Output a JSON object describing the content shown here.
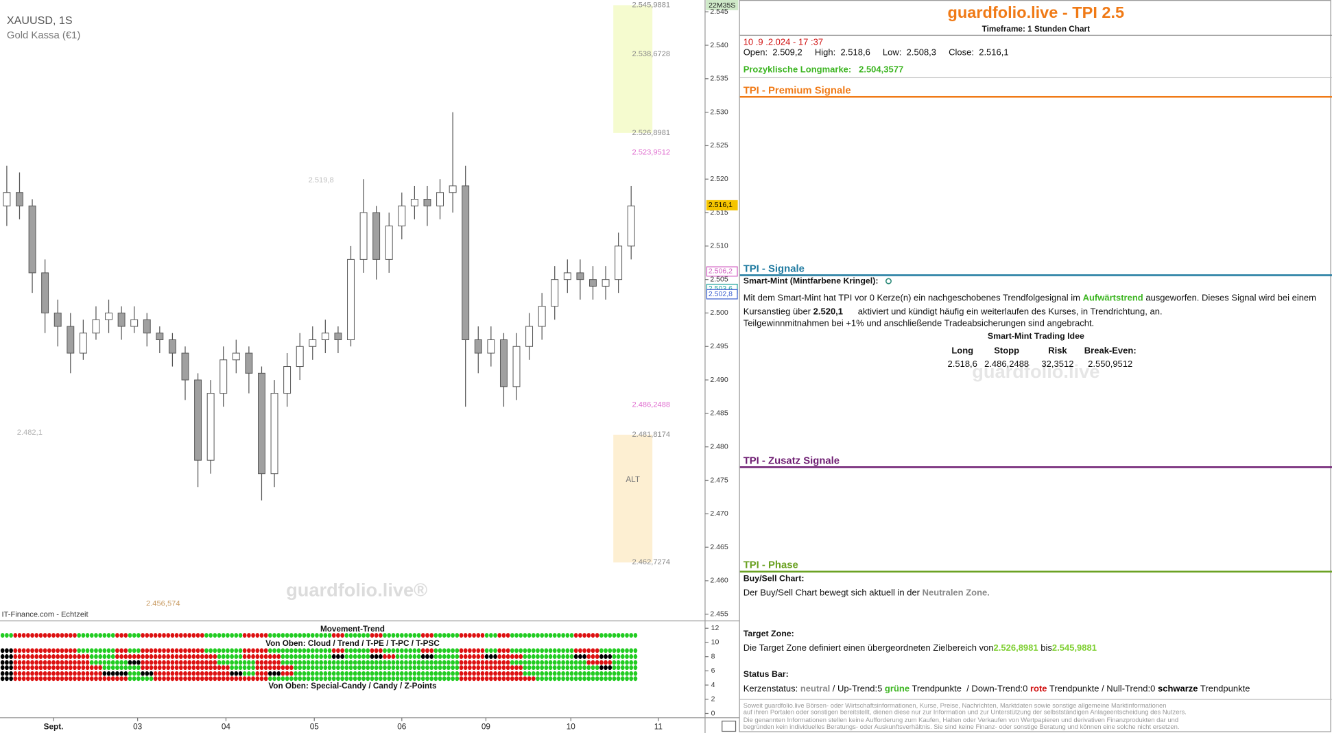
{
  "chart_header": {
    "symbol": "XAUUSD, 1S",
    "name": "Gold Kassa (€1)",
    "source": "IT-Finance.com - Echtzeit",
    "watermark": "guardfolio.live®",
    "timer": "22M35S"
  },
  "price_chart": {
    "type": "candlestick",
    "ylim": [
      2.454,
      2.546
    ],
    "yticks": [
      {
        "value": 2.455,
        "label": "2.455"
      },
      {
        "value": 2.46,
        "label": "2.460"
      },
      {
        "value": 2.465,
        "label": "2.465"
      },
      {
        "value": 2.47,
        "label": "2.470"
      },
      {
        "value": 2.475,
        "label": "2.475"
      },
      {
        "value": 2.48,
        "label": "2.480"
      },
      {
        "value": 2.485,
        "label": "2.485"
      },
      {
        "value": 2.49,
        "label": "2.490"
      },
      {
        "value": 2.495,
        "label": "2.495"
      },
      {
        "value": 2.5,
        "label": "2.500"
      },
      {
        "value": 2.505,
        "label": "2.505"
      },
      {
        "value": 2.51,
        "label": "2.510"
      },
      {
        "value": 2.515,
        "label": "2.515"
      },
      {
        "value": 2.52,
        "label": "2.520"
      },
      {
        "value": 2.525,
        "label": "2.525"
      },
      {
        "value": 2.53,
        "label": "2.530"
      },
      {
        "value": 2.535,
        "label": "2.535"
      },
      {
        "value": 2.54,
        "label": "2.540"
      },
      {
        "value": 2.545,
        "label": "2.545"
      }
    ],
    "open": [
      2.516,
      2.518,
      2.516,
      2.506,
      2.5,
      2.498,
      2.494,
      2.497,
      2.499,
      2.5,
      2.498,
      2.499,
      2.497,
      2.496,
      2.494,
      2.49,
      2.478,
      2.488,
      2.493,
      2.494,
      2.491,
      2.476,
      2.488,
      2.492,
      2.495,
      2.496,
      2.497,
      2.496,
      2.508,
      2.515,
      2.508,
      2.513,
      2.516,
      2.517,
      2.516,
      2.518,
      2.519,
      2.496,
      2.494,
      2.496,
      2.489,
      2.495,
      2.498,
      2.501,
      2.505,
      2.506,
      2.505,
      2.504,
      2.505,
      2.51
    ],
    "high": [
      2.522,
      2.521,
      2.517,
      2.508,
      2.502,
      2.5,
      2.499,
      2.501,
      2.502,
      2.501,
      2.501,
      2.5,
      2.498,
      2.497,
      2.495,
      2.491,
      2.49,
      2.495,
      2.496,
      2.495,
      2.492,
      2.49,
      2.494,
      2.497,
      2.498,
      2.499,
      2.498,
      2.51,
      2.52,
      2.516,
      2.515,
      2.518,
      2.519,
      2.519,
      2.52,
      2.53,
      2.522,
      2.498,
      2.498,
      2.497,
      2.497,
      2.5,
      2.503,
      2.507,
      2.508,
      2.508,
      2.507,
      2.507,
      2.512,
      2.519
    ],
    "low": [
      2.513,
      2.514,
      2.503,
      2.497,
      2.495,
      2.491,
      2.493,
      2.496,
      2.497,
      2.496,
      2.497,
      2.495,
      2.494,
      2.492,
      2.487,
      2.474,
      2.476,
      2.486,
      2.491,
      2.488,
      2.472,
      2.474,
      2.486,
      2.49,
      2.493,
      2.494,
      2.494,
      2.495,
      2.506,
      2.505,
      2.506,
      2.511,
      2.514,
      2.513,
      2.514,
      2.515,
      2.486,
      2.491,
      2.492,
      2.486,
      2.487,
      2.493,
      2.496,
      2.499,
      2.503,
      2.502,
      2.502,
      2.502,
      2.503,
      2.508
    ],
    "close": [
      2.518,
      2.516,
      2.506,
      2.5,
      2.498,
      2.494,
      2.497,
      2.499,
      2.5,
      2.498,
      2.499,
      2.497,
      2.496,
      2.494,
      2.49,
      2.478,
      2.488,
      2.493,
      2.494,
      2.491,
      2.476,
      2.488,
      2.492,
      2.495,
      2.496,
      2.497,
      2.496,
      2.508,
      2.515,
      2.508,
      2.513,
      2.516,
      2.517,
      2.516,
      2.518,
      2.519,
      2.496,
      2.494,
      2.496,
      2.489,
      2.495,
      2.498,
      2.501,
      2.505,
      2.506,
      2.505,
      2.504,
      2.505,
      2.51,
      2.516
    ],
    "up_color": "#ffffff",
    "down_color": "#a0a0a0",
    "dates": [
      "Sept.",
      "03",
      "04",
      "05",
      "06",
      "09",
      "10",
      "11"
    ],
    "price_tags": [
      {
        "value": 2.5161,
        "label": "2.516,1",
        "color": "#f5c400"
      },
      {
        "value": 2.5062,
        "label": "2.506,2",
        "color": "#d05cc0"
      },
      {
        "value": 2.5036,
        "label": "2.503,6",
        "color": "#2aa8a0"
      },
      {
        "value": 2.5028,
        "label": "2.502,8",
        "color": "#3a5fd0"
      }
    ],
    "levels": [
      {
        "value": 2.5459881,
        "label": "2.545,9881",
        "color": "#8a8a8a"
      },
      {
        "value": 2.5386728,
        "label": "2.538,6728",
        "color": "#8a8a8a"
      },
      {
        "value": 2.5268981,
        "label": "2.526,8981",
        "color": "#8a8a8a"
      },
      {
        "value": 2.5239512,
        "label": "2.523,9512",
        "color": "#e070d0"
      },
      {
        "value": 2.4862488,
        "label": "2.486,2488",
        "color": "#e070d0"
      },
      {
        "value": 2.4818174,
        "label": "2.481,8174",
        "color": "#8a8a8a"
      },
      {
        "value": 2.4627274,
        "label": "2.462,7274",
        "color": "#8a8a8a"
      },
      {
        "value": 2.5198,
        "label": "2.519,8",
        "color": "#c0c0c0"
      },
      {
        "value": 2.4821,
        "label": "2.482,1",
        "color": "#b0b0b0"
      },
      {
        "value": 2.456574,
        "label": "2.456,574",
        "color": "#c89a60"
      }
    ],
    "zone_colors": [
      "#f5fbcf",
      "#fdefd2"
    ],
    "alt_label": "ALT"
  },
  "indicator": {
    "title": "Movement-Trend",
    "caption_top": "Von Oben: Cloud / Trend / T-PE / T-PC / T-PSC",
    "caption_bottom": "Von Oben: Special-Candy / Candy / Z-Points",
    "ylim": [
      -0.6,
      12.8
    ],
    "yticks": [
      0,
      2,
      4,
      6,
      8,
      10,
      12
    ],
    "up_color": "#22cc22",
    "down_color": "#dd1111",
    "flat_color": "#000000"
  },
  "panel": {
    "title": "guardfolio.live - TPI 2.5",
    "timeframe": "Timeframe: 1 Stunden Chart",
    "datetime": "10 .9 .2.024 - 17 :37",
    "ohlc": [
      [
        "Open:",
        "2.509,2"
      ],
      [
        "High:",
        "2.518,6"
      ],
      [
        "Low:",
        "2.508,3"
      ],
      [
        "Close:",
        "2.516,1"
      ]
    ],
    "longmark_label": "Prozyklische Longmarke:",
    "longmark_value": "2.504,3577",
    "sections": [
      "TPI - Premium Signale",
      "TPI - Signale",
      "TPI - Zusatz Signale",
      "TPI - Phase"
    ],
    "smart_mint": {
      "heading": "Smart-Mint (Mintfarbene Kringel):",
      "text": [
        "Mit dem Smart-Mint hat TPI vor 0  Kerze(n) ein nachgeschobenes Trendfolgesignal im ",
        "Aufwärtstrend",
        " ausgeworfen. Dieses Signal wird bei einem Kursanstieg über ",
        "2.520,1",
        "      aktiviert und kündigt häufig ein weiterlaufen des Kurses, in Trendrichtung, an."
      ],
      "note": "Teilgewinnmitnahmen bei +1% und anschließende Tradeabsicherungen sind angebracht.",
      "idea_title": "Smart-Mint Trading Idee",
      "headers": [
        "Long",
        "Stopp",
        "Risk",
        "Break-Even:"
      ],
      "values": [
        "2.518,6",
        "2.486,2488",
        "32,3512",
        "2.550,9512"
      ],
      "watermark": "guardfolio.live"
    },
    "buy_sell": {
      "heading": "Buy/Sell Chart:",
      "text": [
        "Der Buy/Sell Chart bewegt sich aktuell in der ",
        "Neutralen Zone."
      ]
    },
    "target_zone": {
      "heading": "Target Zone:",
      "text": [
        "Die Target Zone definiert einen übergeordneten Zielbereich von",
        "2.526,8981",
        "bis",
        "2.545,9881"
      ]
    },
    "status_bar": {
      "heading": "Status Bar:",
      "text": [
        "Kerzenstatus: ",
        "neutral",
        " / Up-Trend:5 ",
        "grüne",
        " Trendpunkte  / Down-Trend:0 ",
        "rote",
        " Trendpunkte / Null-Trend:0 ",
        "schwarze",
        " Trendpunkte"
      ]
    },
    "disclaimer": [
      "Soweit guardfolio.live Börsen- oder Wirtschaftsinformationen, Kurse, Preise, Nachrichten, Marktdaten sowie sonstige allgemeine Marktinformationen",
      "auf ihren Portalen oder sonstigen bereitstellt, dienen diese nur zur Information und zur Unterstützung der selbstständigen Anlageentscheidung des Nutzers.",
      "Die genannten Informationen stellen keine Aufforderung zum Kaufen, Halten oder Verkaufen von Wertpapieren und derivativen Finanzprodukten dar und",
      "begründen kein individuelles Beratungs- oder Auskunftsverhältnis. Sie sind keine Finanz- oder sonstige Beratung und können eine solche nicht ersetzen."
    ]
  }
}
